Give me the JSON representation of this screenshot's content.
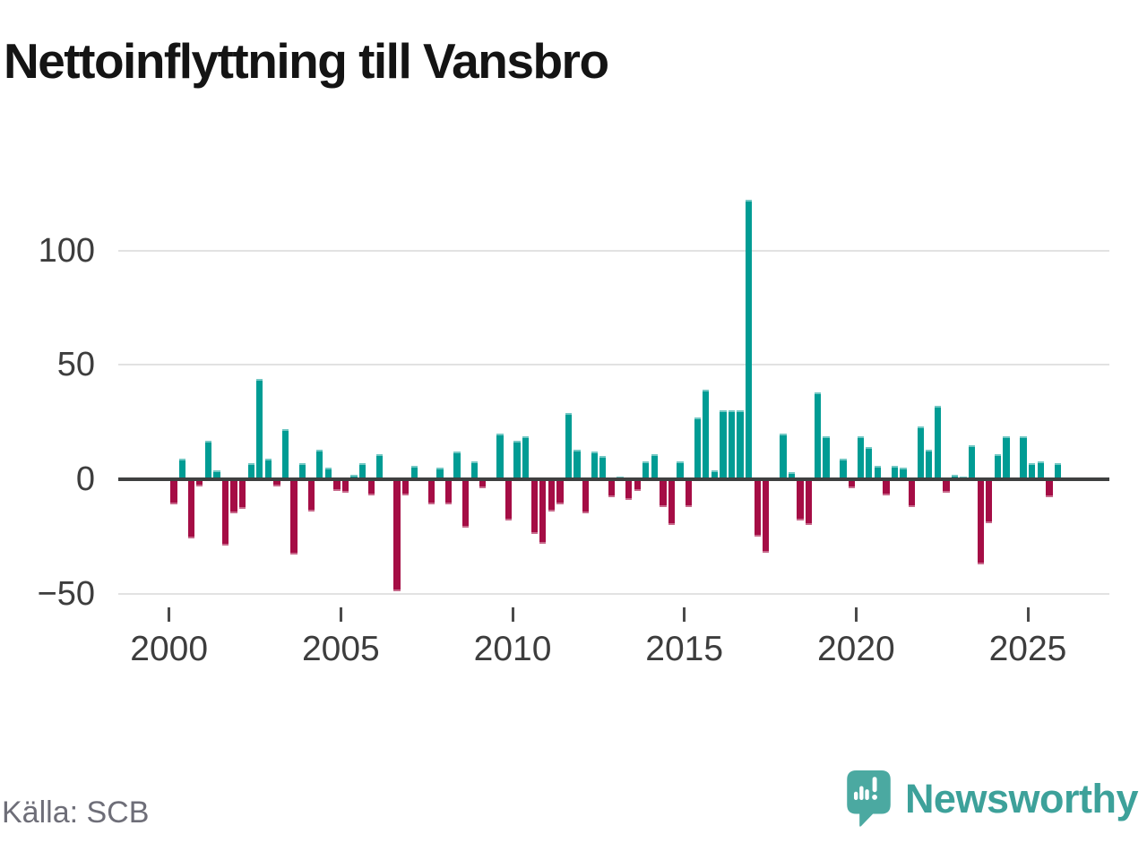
{
  "header": {
    "title": "Nettoinflyttning till Vansbro"
  },
  "source": {
    "label": "Källa: SCB"
  },
  "brand": {
    "name": "Newsworthy",
    "logo_icon": "newsworthy-speech-bubble-barchart-icon"
  },
  "chart_data": {
    "type": "bar",
    "title": "Nettoinflyttning till Vansbro",
    "x_unit": "quarter",
    "years": [
      2000,
      2001,
      2002,
      2003,
      2004,
      2005,
      2006,
      2007,
      2008,
      2009,
      2010,
      2011,
      2012,
      2013,
      2014,
      2015,
      2016,
      2017,
      2018,
      2019,
      2020,
      2021,
      2022,
      2023,
      2024,
      2025
    ],
    "values_per_quarter": [
      [
        -11,
        9,
        -26,
        -3
      ],
      [
        17,
        4,
        -29,
        -15
      ],
      [
        -13,
        7,
        44,
        9
      ],
      [
        -3,
        22,
        -33,
        7
      ],
      [
        -14,
        13,
        5,
        -5
      ],
      [
        -6,
        2,
        7,
        -7
      ],
      [
        11,
        0,
        -49,
        -7
      ],
      [
        6,
        0,
        -11,
        5
      ],
      [
        -11,
        12,
        -21,
        8
      ],
      [
        -4,
        0,
        20,
        -18
      ],
      [
        17,
        19,
        -24,
        -28
      ],
      [
        -14,
        -11,
        29,
        13
      ],
      [
        -15,
        12,
        10,
        -8
      ],
      [
        1,
        -9,
        -5,
        8
      ],
      [
        11,
        -12,
        -20,
        8
      ],
      [
        -12,
        27,
        39,
        4
      ],
      [
        30,
        30,
        30,
        122
      ],
      [
        -25,
        -32,
        0,
        20
      ],
      [
        3,
        -18,
        -20,
        38
      ],
      [
        19,
        0,
        9,
        -4
      ],
      [
        19,
        14,
        6,
        -7
      ],
      [
        6,
        5,
        -12,
        23
      ],
      [
        13,
        32,
        -6,
        2
      ],
      [
        1,
        15,
        -37,
        -19
      ],
      [
        11,
        19,
        0,
        19
      ],
      [
        7,
        8,
        -8,
        7
      ]
    ],
    "ytick_labels": [
      "100",
      "50",
      "0",
      "−50"
    ],
    "ytick_values": [
      100,
      50,
      0,
      -50
    ],
    "xtick_labels": [
      "2000",
      "2005",
      "2010",
      "2015",
      "2020",
      "2025"
    ],
    "ylim": [
      -50,
      125
    ],
    "grid": true,
    "legend": "none",
    "colors": {
      "positive": "#009C94",
      "negative": "#A50D45",
      "axis": "#3f4040",
      "gridline": "#e2e2e2",
      "brand_teal": "#4BA9A1"
    }
  }
}
